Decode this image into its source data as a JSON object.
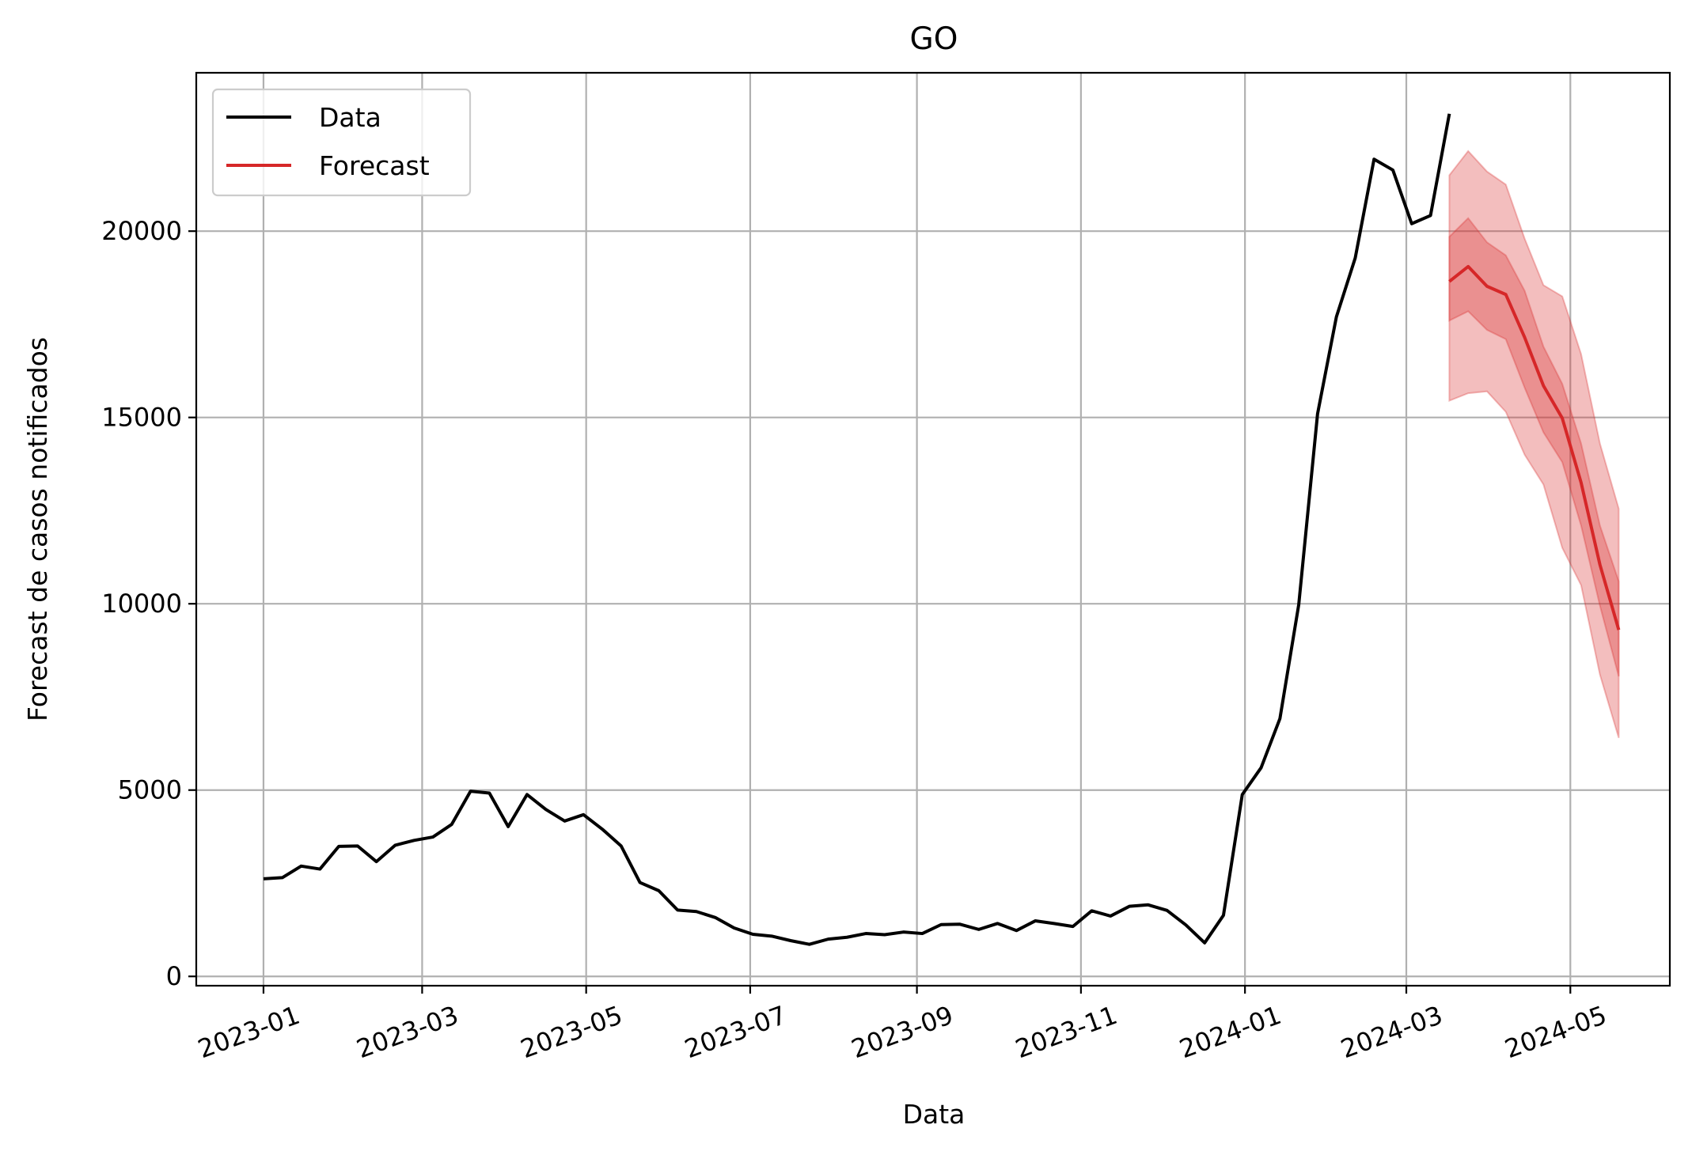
{
  "chart_data": {
    "type": "line",
    "title": "GO",
    "xlabel": "Data",
    "ylabel": "Forecast de casos notificados",
    "x_tick_labels": [
      "2023-01",
      "2023-03",
      "2023-05",
      "2023-07",
      "2023-09",
      "2023-11",
      "2024-01",
      "2024-03",
      "2024-05"
    ],
    "x_tick_dates": [
      "2023-01-01",
      "2023-03-01",
      "2023-05-01",
      "2023-07-01",
      "2023-09-01",
      "2023-11-01",
      "2024-01-01",
      "2024-03-01",
      "2024-05-01"
    ],
    "y_ticks": [
      0,
      5000,
      10000,
      15000,
      20000
    ],
    "y_tick_labels": [
      "0",
      "5000",
      "10000",
      "15000",
      "20000"
    ],
    "xlim": [
      "2022-12-07",
      "2024-06-07"
    ],
    "ylim": [
      -250,
      24250
    ],
    "grid": true,
    "legend_position": "top-left",
    "series": [
      {
        "name": "Data",
        "color": "#000000",
        "points": [
          [
            "2023-01-01",
            2620
          ],
          [
            "2023-01-08",
            2650
          ],
          [
            "2023-01-15",
            2960
          ],
          [
            "2023-01-22",
            2880
          ],
          [
            "2023-01-29",
            3490
          ],
          [
            "2023-02-05",
            3500
          ],
          [
            "2023-02-12",
            3080
          ],
          [
            "2023-02-19",
            3520
          ],
          [
            "2023-02-26",
            3650
          ],
          [
            "2023-03-05",
            3740
          ],
          [
            "2023-03-12",
            4080
          ],
          [
            "2023-03-19",
            4970
          ],
          [
            "2023-03-26",
            4920
          ],
          [
            "2023-04-02",
            4020
          ],
          [
            "2023-04-09",
            4880
          ],
          [
            "2023-04-16",
            4480
          ],
          [
            "2023-04-23",
            4170
          ],
          [
            "2023-04-30",
            4340
          ],
          [
            "2023-05-07",
            3950
          ],
          [
            "2023-05-14",
            3500
          ],
          [
            "2023-05-21",
            2520
          ],
          [
            "2023-05-28",
            2300
          ],
          [
            "2023-06-04",
            1780
          ],
          [
            "2023-06-11",
            1740
          ],
          [
            "2023-06-18",
            1580
          ],
          [
            "2023-06-25",
            1300
          ],
          [
            "2023-07-02",
            1130
          ],
          [
            "2023-07-09",
            1080
          ],
          [
            "2023-07-16",
            960
          ],
          [
            "2023-07-23",
            860
          ],
          [
            "2023-07-30",
            1000
          ],
          [
            "2023-08-06",
            1050
          ],
          [
            "2023-08-13",
            1150
          ],
          [
            "2023-08-20",
            1120
          ],
          [
            "2023-08-27",
            1190
          ],
          [
            "2023-09-03",
            1150
          ],
          [
            "2023-09-10",
            1390
          ],
          [
            "2023-09-17",
            1400
          ],
          [
            "2023-09-24",
            1260
          ],
          [
            "2023-10-01",
            1420
          ],
          [
            "2023-10-08",
            1230
          ],
          [
            "2023-10-15",
            1490
          ],
          [
            "2023-10-22",
            1420
          ],
          [
            "2023-10-29",
            1340
          ],
          [
            "2023-11-05",
            1760
          ],
          [
            "2023-11-12",
            1620
          ],
          [
            "2023-11-19",
            1880
          ],
          [
            "2023-11-26",
            1920
          ],
          [
            "2023-12-03",
            1770
          ],
          [
            "2023-12-10",
            1380
          ],
          [
            "2023-12-17",
            900
          ],
          [
            "2023-12-24",
            1640
          ],
          [
            "2023-12-31",
            4880
          ],
          [
            "2024-01-07",
            5600
          ],
          [
            "2024-01-14",
            6920
          ],
          [
            "2024-01-21",
            9980
          ],
          [
            "2024-01-28",
            15100
          ],
          [
            "2024-02-04",
            17700
          ],
          [
            "2024-02-11",
            19280
          ],
          [
            "2024-02-18",
            21930
          ],
          [
            "2024-02-25",
            21640
          ],
          [
            "2024-03-03",
            20200
          ],
          [
            "2024-03-10",
            20420
          ],
          [
            "2024-03-17",
            23150
          ]
        ]
      },
      {
        "name": "Forecast",
        "color": "#d62728",
        "points": [
          [
            "2024-03-17",
            18650
          ],
          [
            "2024-03-24",
            19050
          ],
          [
            "2024-03-31",
            18520
          ],
          [
            "2024-04-07",
            18300
          ],
          [
            "2024-04-14",
            17150
          ],
          [
            "2024-04-21",
            15850
          ],
          [
            "2024-04-28",
            14980
          ],
          [
            "2024-05-05",
            13250
          ],
          [
            "2024-05-12",
            11050
          ],
          [
            "2024-05-19",
            9300
          ]
        ],
        "band_50": {
          "lower": [
            17600,
            17850,
            17350,
            17100,
            15800,
            14600,
            13800,
            12100,
            9950,
            8050
          ],
          "upper": [
            19850,
            20350,
            19700,
            19350,
            18400,
            16900,
            15900,
            14300,
            12100,
            10600
          ]
        },
        "band_90": {
          "lower": [
            15450,
            15650,
            15700,
            15150,
            14000,
            13200,
            11500,
            10500,
            8100,
            6400
          ],
          "upper": [
            21500,
            22150,
            21600,
            21250,
            19800,
            18550,
            18250,
            16700,
            14300,
            12550
          ]
        }
      }
    ]
  }
}
